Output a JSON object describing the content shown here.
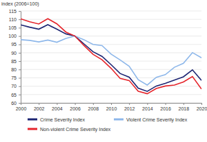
{
  "chart_data": {
    "type": "line",
    "y_label": "index (2006=100)",
    "x": [
      2000,
      2001,
      2002,
      2003,
      2004,
      2005,
      2006,
      2007,
      2008,
      2009,
      2010,
      2011,
      2012,
      2013,
      2014,
      2015,
      2016,
      2017,
      2018,
      2019,
      2020
    ],
    "series": [
      {
        "name": "Crime Severity Index",
        "color": "#1c2472",
        "values": [
          106.7,
          105.3,
          104.1,
          106.8,
          104.1,
          101.3,
          100,
          95.3,
          90.6,
          87.8,
          82.9,
          77.6,
          75.4,
          68.8,
          66.9,
          70.1,
          71.7,
          73.6,
          75.6,
          79.8,
          73.4
        ]
      },
      {
        "name": "Violent Crime Severity Index",
        "color": "#8db7ea",
        "values": [
          97.8,
          97.4,
          96.5,
          97.6,
          96.3,
          98.6,
          100,
          97.8,
          95.0,
          94.3,
          89.2,
          85.7,
          81.9,
          73.9,
          70.7,
          75.3,
          76.9,
          81.3,
          83.7,
          90.1,
          87.0
        ]
      },
      {
        "name": "Non-violent Crime Severity Index",
        "color": "#e5232a",
        "values": [
          110.3,
          108.5,
          107.2,
          110.4,
          107.3,
          102.4,
          100,
          94.3,
          89.1,
          85.8,
          80.7,
          74.7,
          73.4,
          67.0,
          65.5,
          68.6,
          70.1,
          70.7,
          72.5,
          75.8,
          68.3
        ]
      }
    ],
    "xlim": [
      2000,
      2020
    ],
    "xticks": [
      2000,
      2002,
      2004,
      2006,
      2008,
      2010,
      2012,
      2014,
      2016,
      2018,
      2020
    ],
    "ylim": [
      60,
      115
    ],
    "yticks": [
      60,
      65,
      70,
      75,
      80,
      85,
      90,
      95,
      100,
      105,
      110,
      115
    ],
    "grid": true,
    "legend": "bottom",
    "line_style": "solid"
  }
}
